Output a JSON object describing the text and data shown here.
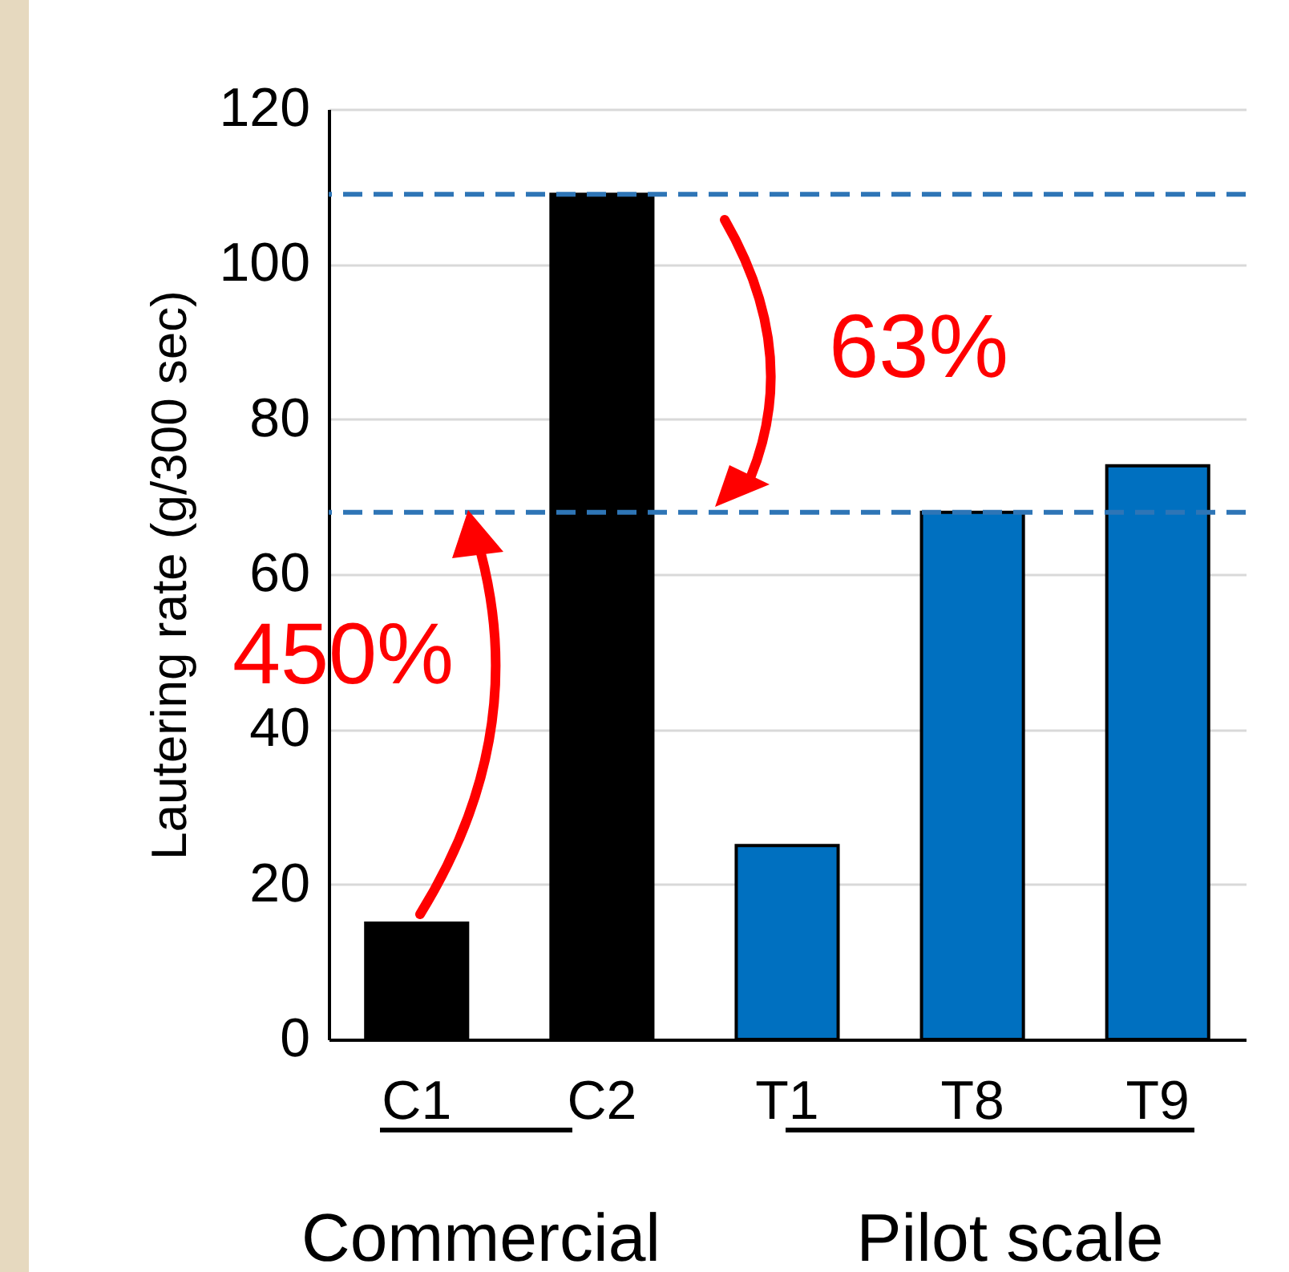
{
  "chart_data": {
    "type": "bar",
    "ylabel": "Lautering rate (g/300 sec)",
    "categories": [
      "C1",
      "C2",
      "T1",
      "T8",
      "T9"
    ],
    "values": [
      15,
      109,
      25,
      68,
      74
    ],
    "colors": [
      "#000000",
      "#000000",
      "#0070c0",
      "#0070c0",
      "#0070c0"
    ],
    "ylim": [
      0,
      120
    ],
    "yticks": [
      0,
      20,
      40,
      60,
      80,
      100,
      120
    ],
    "grid": "y",
    "ref_lines": [
      {
        "axis": "y",
        "value": 109,
        "color": "#2e75b6",
        "line_style": "dashed"
      },
      {
        "axis": "y",
        "value": 68,
        "color": "#2e75b6",
        "line_style": "dashed"
      }
    ],
    "annotations": [
      "63%",
      "450%",
      "Commercial",
      "Pilot scale"
    ]
  }
}
